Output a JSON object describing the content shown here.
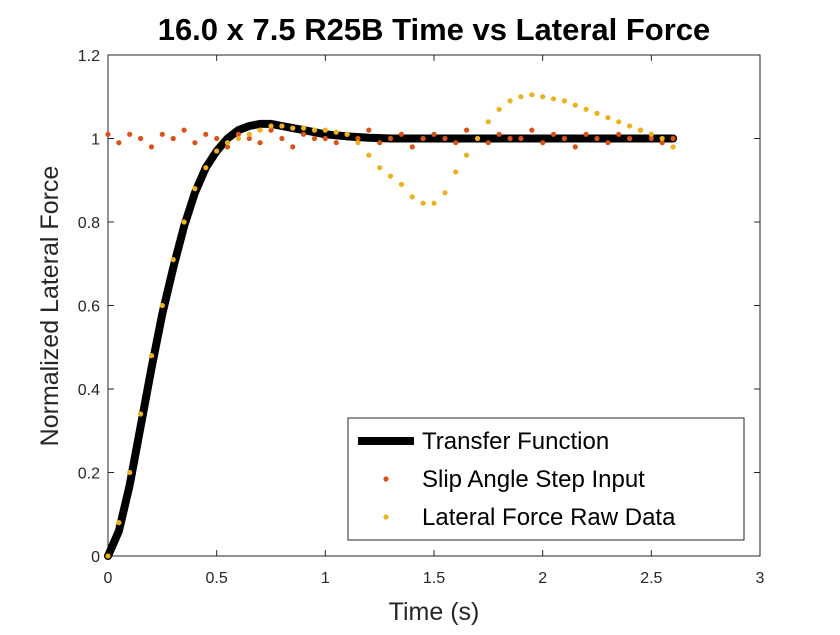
{
  "chart_data": {
    "type": "scatter",
    "title": "16.0 x 7.5 R25B Time vs Lateral Force",
    "xlabel": "Time (s)",
    "ylabel": "Normalized Lateral Force",
    "xlim": [
      0,
      3
    ],
    "ylim": [
      0,
      1.2
    ],
    "x_ticks": [
      "0",
      "0.5",
      "1",
      "1.5",
      "2",
      "2.5",
      "3"
    ],
    "y_ticks": [
      "0",
      "0.2",
      "0.4",
      "0.6",
      "0.8",
      "1",
      "1.2"
    ],
    "x_tick_values": [
      0,
      0.5,
      1,
      1.5,
      2,
      2.5,
      3
    ],
    "y_tick_values": [
      0,
      0.2,
      0.4,
      0.6,
      0.8,
      1,
      1.2
    ],
    "grid": false,
    "box": true,
    "legend_position": "bottom-right",
    "series": [
      {
        "name": "Transfer Function",
        "kind": "line",
        "color": "#000000",
        "x": [
          0,
          0.05,
          0.1,
          0.15,
          0.2,
          0.25,
          0.3,
          0.35,
          0.4,
          0.45,
          0.5,
          0.55,
          0.6,
          0.65,
          0.7,
          0.75,
          0.8,
          0.85,
          0.9,
          0.95,
          1.0,
          1.1,
          1.2,
          1.3,
          1.4,
          1.5,
          1.75,
          2.0,
          2.25,
          2.5,
          2.6
        ],
        "y": [
          0,
          0.06,
          0.17,
          0.31,
          0.45,
          0.58,
          0.69,
          0.79,
          0.87,
          0.93,
          0.97,
          1.0,
          1.02,
          1.03,
          1.035,
          1.035,
          1.03,
          1.025,
          1.02,
          1.015,
          1.01,
          1.005,
          1.002,
          1.0,
          1.0,
          1.0,
          1.0,
          1.0,
          1.0,
          1.0,
          1.0
        ]
      },
      {
        "name": "Slip Angle Step Input",
        "kind": "scatter",
        "color": "#D95319",
        "x": [
          0.0,
          0.05,
          0.1,
          0.15,
          0.2,
          0.25,
          0.3,
          0.35,
          0.4,
          0.45,
          0.5,
          0.55,
          0.6,
          0.65,
          0.7,
          0.75,
          0.8,
          0.85,
          0.9,
          0.95,
          1.0,
          1.05,
          1.1,
          1.15,
          1.2,
          1.25,
          1.3,
          1.35,
          1.4,
          1.45,
          1.5,
          1.55,
          1.6,
          1.65,
          1.7,
          1.75,
          1.8,
          1.85,
          1.9,
          1.95,
          2.0,
          2.05,
          2.1,
          2.15,
          2.2,
          2.25,
          2.3,
          2.35,
          2.4,
          2.45,
          2.5,
          2.55,
          2.6
        ],
        "y": [
          1.01,
          0.99,
          1.01,
          1.0,
          0.98,
          1.01,
          1.0,
          1.02,
          0.99,
          1.01,
          1.0,
          0.98,
          1.01,
          1.0,
          0.99,
          1.02,
          1.0,
          0.98,
          1.01,
          1.0,
          1.0,
          0.99,
          1.01,
          1.0,
          1.02,
          0.99,
          1.0,
          1.01,
          0.98,
          1.0,
          1.01,
          1.0,
          0.99,
          1.02,
          1.0,
          0.99,
          1.01,
          1.0,
          1.0,
          1.02,
          0.99,
          1.01,
          1.0,
          0.98,
          1.01,
          1.0,
          0.99,
          1.01,
          1.0,
          1.02,
          1.0,
          0.99,
          1.0
        ]
      },
      {
        "name": "Lateral Force Raw Data",
        "kind": "scatter",
        "color": "#EDB120",
        "x": [
          0.0,
          0.05,
          0.1,
          0.15,
          0.2,
          0.25,
          0.3,
          0.35,
          0.4,
          0.45,
          0.5,
          0.55,
          0.6,
          0.65,
          0.7,
          0.75,
          0.8,
          0.85,
          0.9,
          0.95,
          1.0,
          1.05,
          1.1,
          1.15,
          1.2,
          1.25,
          1.3,
          1.35,
          1.4,
          1.45,
          1.5,
          1.55,
          1.6,
          1.65,
          1.7,
          1.75,
          1.8,
          1.85,
          1.9,
          1.95,
          2.0,
          2.05,
          2.1,
          2.15,
          2.2,
          2.25,
          2.3,
          2.35,
          2.4,
          2.45,
          2.5,
          2.55,
          2.6
        ],
        "y": [
          0.0,
          0.08,
          0.2,
          0.34,
          0.48,
          0.6,
          0.71,
          0.8,
          0.88,
          0.93,
          0.97,
          0.99,
          1.0,
          1.01,
          1.02,
          1.03,
          1.03,
          1.025,
          1.025,
          1.02,
          1.02,
          1.015,
          1.01,
          0.99,
          0.96,
          0.93,
          0.91,
          0.89,
          0.86,
          0.845,
          0.845,
          0.87,
          0.92,
          0.96,
          1.0,
          1.04,
          1.07,
          1.09,
          1.1,
          1.105,
          1.1,
          1.095,
          1.09,
          1.08,
          1.07,
          1.06,
          1.05,
          1.04,
          1.03,
          1.02,
          1.01,
          1.0,
          0.98
        ]
      }
    ]
  }
}
